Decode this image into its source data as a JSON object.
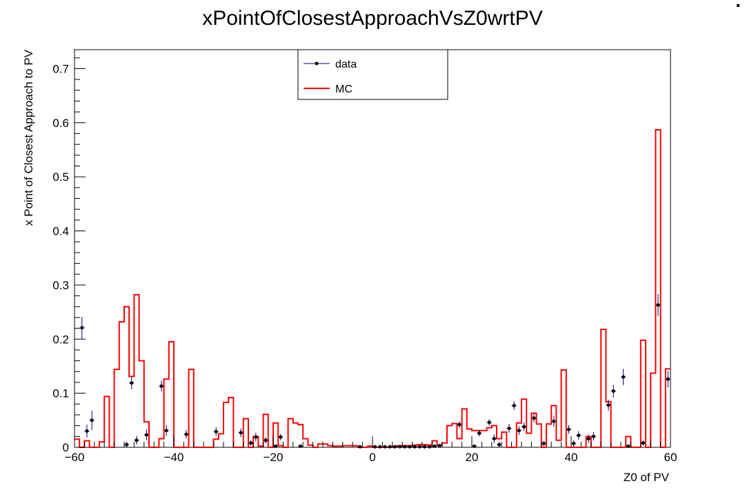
{
  "chart_data": {
    "type": "line",
    "title": "xPointOfClosestApproachVsZ0wrtPV",
    "xlabel": "Z0 of PV",
    "ylabel": "x Point of Closest Approach to PV",
    "xlim": [
      -60,
      60
    ],
    "ylim": [
      0,
      0.735
    ],
    "grid": false,
    "legend_placement": "top-center",
    "x_ticks": [
      -60,
      -40,
      -20,
      0,
      20,
      40,
      60
    ],
    "x_tick_labels": [
      "−60",
      "−40",
      "−20",
      "0",
      "20",
      "40",
      "60"
    ],
    "y_ticks": [
      0,
      0.1,
      0.2,
      0.3,
      0.4,
      0.5,
      0.6,
      0.7
    ],
    "y_tick_labels": [
      "0",
      "0.1",
      "0.2",
      "0.3",
      "0.4",
      "0.5",
      "0.6",
      "0.7"
    ],
    "bin_edges_range": [
      -60,
      60
    ],
    "bin_width": 1,
    "series": [
      {
        "name": "MC",
        "style": "step",
        "color": "#ff0000",
        "values": [
          0.015,
          0.0,
          0.012,
          0.0,
          0.0,
          0.01,
          0.094,
          0.0,
          0.144,
          0.232,
          0.26,
          0.131,
          0.282,
          0.16,
          0.047,
          0.0,
          0.0,
          0.016,
          0.126,
          0.195,
          0.0,
          0.0,
          0.0,
          0.144,
          0.0,
          0.0,
          0.0,
          0.0,
          0.015,
          0.025,
          0.083,
          0.092,
          0.0,
          0.0,
          0.053,
          0.0,
          0.02,
          0.002,
          0.061,
          0.0,
          0.045,
          0.003,
          0.0,
          0.053,
          0.045,
          0.042,
          0.016,
          0.004,
          0.0,
          0.006,
          0.006,
          0.003,
          0.002,
          0.002,
          0.003,
          0.003,
          0.003,
          0.0,
          0.0,
          0.002,
          0.0,
          0.0,
          0.0,
          0.0,
          0.002,
          0.003,
          0.003,
          0.003,
          0.004,
          0.005,
          0.005,
          0.004,
          0.012,
          0.004,
          0.008,
          0.04,
          0.044,
          0.016,
          0.071,
          0.034,
          0.031,
          0.031,
          0.031,
          0.036,
          0.04,
          0.016,
          0.028,
          0.0,
          0.0,
          0.045,
          0.089,
          0.026,
          0.063,
          0.043,
          0.0,
          0.043,
          0.077,
          0.013,
          0.143,
          0.0,
          0.0,
          0.0,
          0.0,
          0.02,
          0.0,
          0.0,
          0.218,
          0.084,
          0.0,
          0.0,
          0.0,
          0.02,
          0.0,
          0.0,
          0.198,
          0.0,
          0.137,
          0.587,
          0.0,
          0.145
        ]
      },
      {
        "name": "data",
        "style": "points",
        "color": "#000080",
        "points": [
          {
            "x": -58.5,
            "y": 0.221,
            "err": 0.02
          },
          {
            "x": -57.5,
            "y": 0.03,
            "err": 0.012
          },
          {
            "x": -56.5,
            "y": 0.05,
            "err": 0.018
          },
          {
            "x": -49.5,
            "y": 0.005,
            "err": 0.005
          },
          {
            "x": -48.5,
            "y": 0.119,
            "err": 0.012
          },
          {
            "x": -47.5,
            "y": 0.013,
            "err": 0.008
          },
          {
            "x": -45.5,
            "y": 0.023,
            "err": 0.01
          },
          {
            "x": -42.5,
            "y": 0.113,
            "err": 0.01
          },
          {
            "x": -41.5,
            "y": 0.031,
            "err": 0.01
          },
          {
            "x": -37.5,
            "y": 0.024,
            "err": 0.008
          },
          {
            "x": -31.5,
            "y": 0.029,
            "err": 0.008
          },
          {
            "x": -26.5,
            "y": 0.027,
            "err": 0.008
          },
          {
            "x": -24.5,
            "y": 0.008,
            "err": 0.005
          },
          {
            "x": -23.5,
            "y": 0.019,
            "err": 0.008
          },
          {
            "x": -21.5,
            "y": 0.013,
            "err": 0.006
          },
          {
            "x": -19.5,
            "y": 0.002,
            "err": 0.003
          },
          {
            "x": -18.5,
            "y": 0.019,
            "err": 0.006
          },
          {
            "x": -14.5,
            "y": 0.002,
            "err": 0.002
          },
          {
            "x": -2.5,
            "y": 0.001,
            "err": 0.001
          },
          {
            "x": 0.5,
            "y": 0.001,
            "err": 0.001
          },
          {
            "x": 1.5,
            "y": 0.001,
            "err": 0.001
          },
          {
            "x": 2.5,
            "y": 0.001,
            "err": 0.001
          },
          {
            "x": 3.5,
            "y": 0.001,
            "err": 0.001
          },
          {
            "x": 4.5,
            "y": 0.001,
            "err": 0.001
          },
          {
            "x": 5.5,
            "y": 0.001,
            "err": 0.001
          },
          {
            "x": 6.5,
            "y": 0.001,
            "err": 0.001
          },
          {
            "x": 7.5,
            "y": 0.001,
            "err": 0.001
          },
          {
            "x": 8.5,
            "y": 0.001,
            "err": 0.001
          },
          {
            "x": 9.5,
            "y": 0.001,
            "err": 0.001
          },
          {
            "x": 10.5,
            "y": 0.001,
            "err": 0.001
          },
          {
            "x": 11.5,
            "y": 0.001,
            "err": 0.001
          },
          {
            "x": 12.5,
            "y": 0.002,
            "err": 0.002
          },
          {
            "x": 13.5,
            "y": 0.003,
            "err": 0.002
          },
          {
            "x": 17.5,
            "y": 0.042,
            "err": 0.006
          },
          {
            "x": 20.5,
            "y": 0.002,
            "err": 0.002
          },
          {
            "x": 21.5,
            "y": 0.026,
            "err": 0.006
          },
          {
            "x": 23.5,
            "y": 0.046,
            "err": 0.006
          },
          {
            "x": 24.5,
            "y": 0.016,
            "err": 0.008
          },
          {
            "x": 25.5,
            "y": 0.005,
            "err": 0.005
          },
          {
            "x": 27.5,
            "y": 0.035,
            "err": 0.008
          },
          {
            "x": 28.5,
            "y": 0.077,
            "err": 0.008
          },
          {
            "x": 29.5,
            "y": 0.031,
            "err": 0.008
          },
          {
            "x": 30.5,
            "y": 0.038,
            "err": 0.008
          },
          {
            "x": 32.5,
            "y": 0.054,
            "err": 0.008
          },
          {
            "x": 34.5,
            "y": 0.007,
            "err": 0.005
          },
          {
            "x": 36.5,
            "y": 0.048,
            "err": 0.01
          },
          {
            "x": 39.5,
            "y": 0.033,
            "err": 0.008
          },
          {
            "x": 40.5,
            "y": 0.007,
            "err": 0.006
          },
          {
            "x": 41.5,
            "y": 0.022,
            "err": 0.008
          },
          {
            "x": 43.5,
            "y": 0.016,
            "err": 0.008
          },
          {
            "x": 44.5,
            "y": 0.02,
            "err": 0.008
          },
          {
            "x": 47.5,
            "y": 0.078,
            "err": 0.01
          },
          {
            "x": 48.5,
            "y": 0.104,
            "err": 0.012
          },
          {
            "x": 50.5,
            "y": 0.13,
            "err": 0.015
          },
          {
            "x": 51.5,
            "y": 0.002,
            "err": 0.002
          },
          {
            "x": 54.5,
            "y": 0.008,
            "err": 0.005
          },
          {
            "x": 57.5,
            "y": 0.263,
            "err": 0.02
          },
          {
            "x": 59.5,
            "y": 0.126,
            "err": 0.015
          }
        ]
      }
    ],
    "legend": [
      {
        "label": "data",
        "marker": "point-line",
        "color": "#000080"
      },
      {
        "label": "MC",
        "marker": "line",
        "color": "#ff0000"
      }
    ]
  }
}
